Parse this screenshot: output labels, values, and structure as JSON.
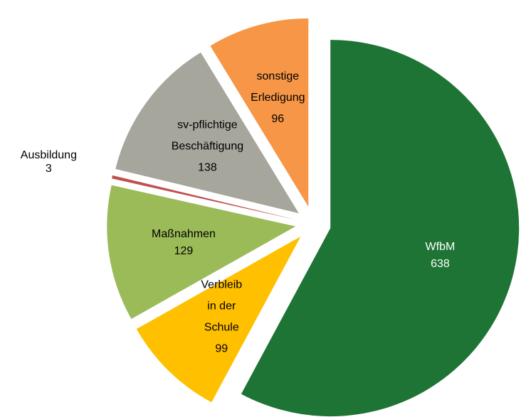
{
  "chart_data": {
    "type": "pie",
    "categories": [
      [
        "WfbM"
      ],
      [
        "Verbleib",
        "in der",
        "Schule"
      ],
      [
        "Maßnahmen"
      ],
      [
        "Ausbildung"
      ],
      [
        "sv-pflichtige",
        "Beschäftigung"
      ],
      [
        "sonstige",
        "Erledigung"
      ]
    ],
    "values": [
      638,
      99,
      129,
      3,
      138,
      96
    ],
    "colors": [
      "#1e7434",
      "#ffc000",
      "#9bbb59",
      "#c0504d",
      "#a6a69c",
      "#f79646"
    ]
  }
}
